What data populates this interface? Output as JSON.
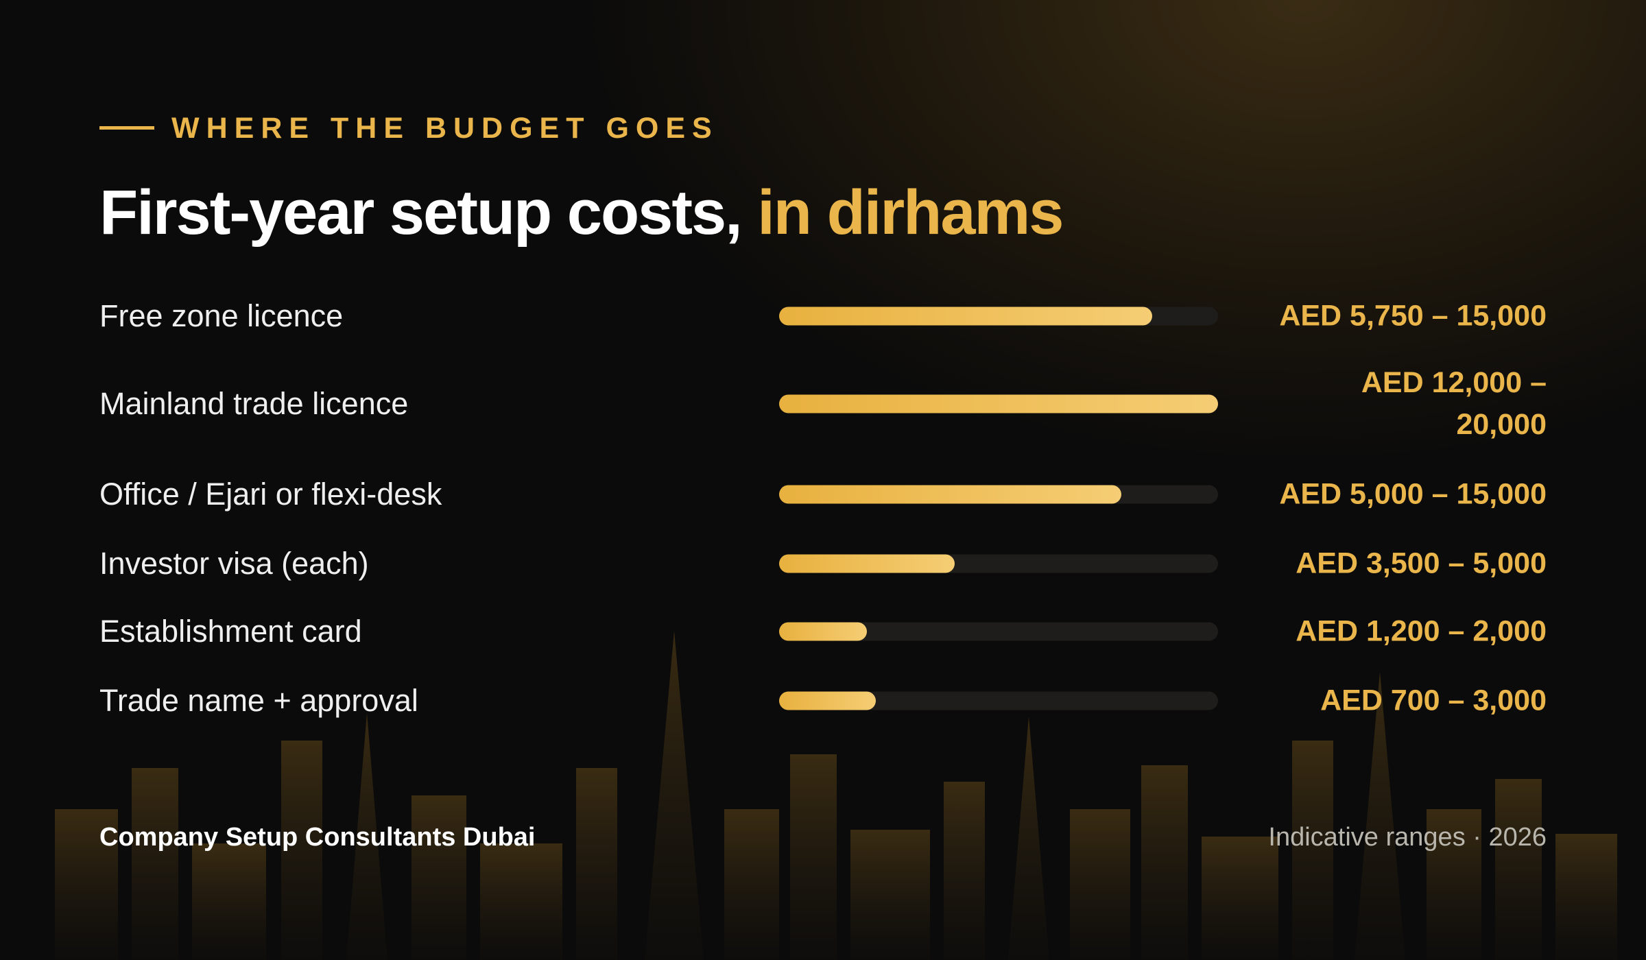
{
  "chart_data": {
    "type": "bar",
    "orientation": "horizontal",
    "eyebrow": "WHERE THE BUDGET GOES",
    "title": "First-year setup costs,",
    "title_highlight": "in dirhams",
    "categories": [
      "Free zone licence",
      "Mainland trade licence",
      "Office / Ejari or flexi-desk",
      "Investor visa (each)",
      "Establishment card",
      "Trade name + approval"
    ],
    "values": [
      85,
      100,
      78,
      40,
      20,
      22
    ],
    "range_labels": [
      "AED 5,750 – 15,000",
      "AED 12,000 – 20,000",
      "AED 5,000 – 15,000",
      "AED 3,500 – 5,000",
      "AED 1,200 – 2,000",
      "AED 700 – 3,000"
    ],
    "xlim": [
      0,
      100
    ],
    "color": "#e8b13f",
    "color_end": "#f5cd74",
    "track_color": "#1e1d1b",
    "footer_left": "Company Setup Consultants Dubai",
    "footer_right": "Indicative ranges · 2026"
  }
}
